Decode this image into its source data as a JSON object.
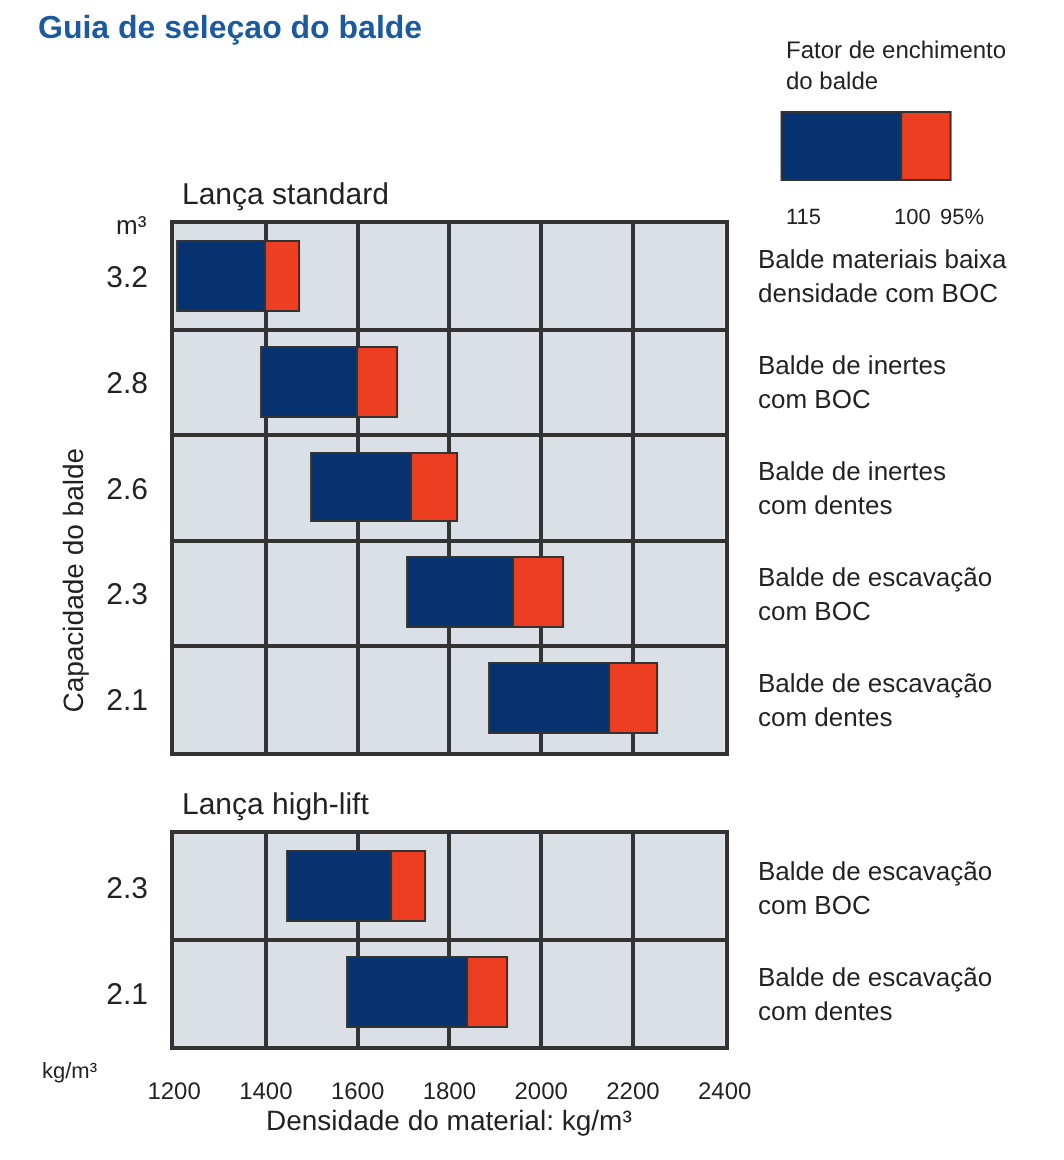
{
  "chart_data": [
    {
      "type": "bar",
      "orientation": "horizontal",
      "title": "Lança standard",
      "ylabel": "Capacidade do balde",
      "legend_title": "Fator de enchimento\ndo balde",
      "categories": [
        "3.2",
        "2.8",
        "2.6",
        "2.3",
        "2.1"
      ],
      "series": [
        {
          "color": "#06336f",
          "base": [
            1210,
            1390,
            1500,
            1710,
            1890
          ],
          "values": [
            190,
            210,
            220,
            230,
            260
          ]
        },
        {
          "color": "#ee3e22",
          "base": [
            1400,
            1600,
            1720,
            1940,
            2150
          ],
          "values": [
            75,
            90,
            100,
            110,
            105
          ]
        }
      ],
      "xlim": [
        1200,
        2400
      ],
      "xticks": [
        1200,
        1400,
        1600,
        1800,
        2000,
        2200,
        2400
      ],
      "grid": true,
      "tick_labels": "y",
      "annotations": [
        "m³",
        "115",
        "100",
        "95%",
        "Balde materiais baixa\ndensidade com BOC",
        "Balde de inertes\ncom BOC",
        "Balde de inertes\ncom dentes",
        "Balde de escavação\ncom BOC",
        "Balde de escavação\ncom dentes"
      ]
    },
    {
      "type": "bar",
      "orientation": "horizontal",
      "title": "Lança high-lift",
      "xlabel": "Densidade do material: kg/m³",
      "categories": [
        "2.3",
        "2.1"
      ],
      "series": [
        {
          "color": "#06336f",
          "base": [
            1450,
            1580
          ],
          "values": [
            225,
            260
          ]
        },
        {
          "color": "#ee3e22",
          "base": [
            1675,
            1840
          ],
          "values": [
            75,
            90
          ]
        }
      ],
      "xlim": [
        1200,
        2400
      ],
      "xticks": [
        1200,
        1400,
        1600,
        1800,
        2000,
        2200,
        2400
      ],
      "grid": true,
      "annotations": [
        "kg/m³",
        "Guia de seleçao do balde",
        "Balde de escavação\ncom BOC",
        "Balde de escavação\ncom dentes"
      ]
    }
  ]
}
